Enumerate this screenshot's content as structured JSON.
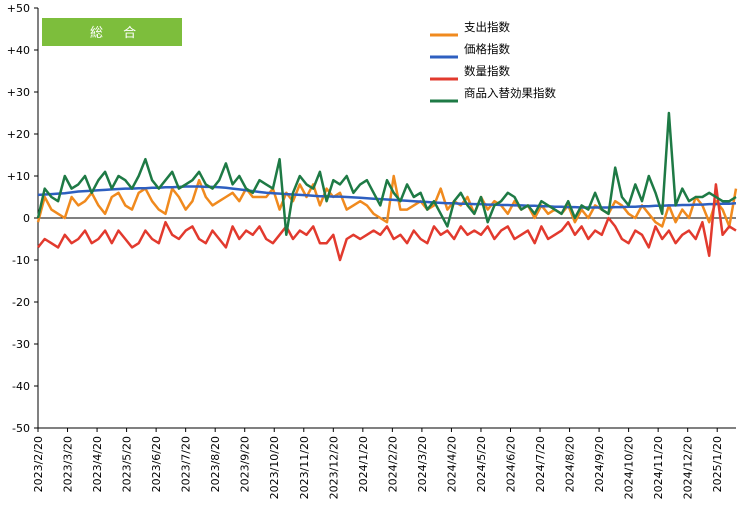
{
  "chart_data": {
    "type": "line",
    "badge": "総 合",
    "title": "",
    "xlabel": "",
    "ylabel": "",
    "ylim": [
      -50,
      50
    ],
    "yticks": [
      "-50",
      "-40",
      "-30",
      "-20",
      "-10",
      "0",
      "+10",
      "+20",
      "+30",
      "+40",
      "+50"
    ],
    "grid": false,
    "legend_position": "top-right",
    "x_tick_labels": [
      "2023/2/20",
      "2023/3/20",
      "2023/4/20",
      "2023/5/20",
      "2023/6/20",
      "2023/7/20",
      "2023/8/20",
      "2023/9/20",
      "2023/10/20",
      "2023/11/20",
      "2023/12/20",
      "2024/1/20",
      "2024/2/20",
      "2024/3/20",
      "2024/4/20",
      "2024/5/20",
      "2024/6/20",
      "2024/7/20",
      "2024/8/20",
      "2024/9/20",
      "2024/10/20",
      "2024/11/20",
      "2024/12/20",
      "2025/1/20"
    ],
    "x_count": 105,
    "tick_every": 4.4,
    "series": [
      {
        "name": "支出指数",
        "color": "#F08A1E",
        "values": [
          -1,
          5,
          2,
          1,
          0,
          5,
          3,
          4,
          6,
          3,
          1,
          5,
          6,
          3,
          2,
          6,
          7,
          4,
          2,
          1,
          7,
          5,
          2,
          4,
          9,
          5,
          3,
          4,
          5,
          6,
          4,
          7,
          5,
          5,
          5,
          7,
          2,
          6,
          4,
          8,
          5,
          8,
          3,
          7,
          5,
          6,
          2,
          3,
          4,
          3,
          1,
          0,
          -1,
          10,
          2,
          2,
          3,
          4,
          2,
          3,
          7,
          2,
          4,
          3,
          5,
          1,
          5,
          2,
          4,
          3,
          1,
          4,
          2,
          3,
          0,
          3,
          1,
          2,
          1,
          3,
          -1,
          2,
          0,
          3,
          2,
          1,
          4,
          3,
          1,
          0,
          3,
          1,
          -1,
          -2,
          3,
          -1,
          2,
          0,
          5,
          3,
          -1,
          4,
          2,
          -2,
          7
        ]
      },
      {
        "name": "価格指数",
        "color": "#2E5FC0",
        "values": [
          5.5,
          5.6,
          5.7,
          5.8,
          5.9,
          6.1,
          6.3,
          6.4,
          6.5,
          6.6,
          6.7,
          6.8,
          6.9,
          7.0,
          7.0,
          7.1,
          7.1,
          7.2,
          7.2,
          7.3,
          7.3,
          7.4,
          7.5,
          7.5,
          7.5,
          7.4,
          7.4,
          7.3,
          7.2,
          7.0,
          6.8,
          6.6,
          6.4,
          6.2,
          6.0,
          5.9,
          5.8,
          5.7,
          5.6,
          5.5,
          5.4,
          5.3,
          5.2,
          5.2,
          5.1,
          5.1,
          5.0,
          4.9,
          4.8,
          4.7,
          4.6,
          4.5,
          4.4,
          4.3,
          4.2,
          4.1,
          4.0,
          3.9,
          3.8,
          3.7,
          3.6,
          3.5,
          3.5,
          3.4,
          3.4,
          3.3,
          3.3,
          3.2,
          3.2,
          3.1,
          3.1,
          3.0,
          3.0,
          2.9,
          2.9,
          2.8,
          2.8,
          2.7,
          2.7,
          2.6,
          2.6,
          2.5,
          2.5,
          2.5,
          2.5,
          2.5,
          2.6,
          2.6,
          2.7,
          2.7,
          2.8,
          2.8,
          2.9,
          2.9,
          3.0,
          3.0,
          3.1,
          3.1,
          3.2,
          3.2,
          3.3,
          3.3,
          3.4,
          3.4,
          3.5
        ]
      },
      {
        "name": "数量指数",
        "color": "#E23A2E",
        "values": [
          -7,
          -5,
          -6,
          -7,
          -4,
          -6,
          -5,
          -3,
          -6,
          -5,
          -3,
          -6,
          -3,
          -5,
          -7,
          -6,
          -3,
          -5,
          -6,
          -1,
          -4,
          -5,
          -3,
          -2,
          -5,
          -6,
          -3,
          -5,
          -7,
          -2,
          -5,
          -3,
          -4,
          -2,
          -5,
          -6,
          -4,
          -2,
          -5,
          -3,
          -4,
          -2,
          -6,
          -6,
          -4,
          -10,
          -5,
          -4,
          -5,
          -4,
          -3,
          -4,
          -2,
          -5,
          -4,
          -6,
          -3,
          -5,
          -6,
          -2,
          -4,
          -3,
          -5,
          -2,
          -4,
          -3,
          -4,
          -2,
          -5,
          -3,
          -2,
          -5,
          -4,
          -3,
          -6,
          -2,
          -5,
          -4,
          -3,
          -1,
          -4,
          -2,
          -5,
          -3,
          -4,
          0,
          -2,
          -5,
          -6,
          -3,
          -4,
          -7,
          -2,
          -5,
          -3,
          -6,
          -4,
          -3,
          -5,
          -1,
          -9,
          8,
          -4,
          -2,
          -3
        ]
      },
      {
        "name": "商品入替効果指数",
        "color": "#1E7A45",
        "values": [
          0,
          7,
          5,
          4,
          10,
          7,
          8,
          10,
          6,
          9,
          11,
          7,
          10,
          9,
          7,
          10,
          14,
          9,
          7,
          9,
          11,
          7,
          8,
          9,
          11,
          8,
          7,
          9,
          13,
          8,
          10,
          7,
          6,
          9,
          8,
          7,
          14,
          -4,
          6,
          10,
          8,
          7,
          11,
          4,
          9,
          8,
          10,
          6,
          8,
          9,
          6,
          3,
          9,
          6,
          4,
          8,
          5,
          6,
          2,
          4,
          1,
          -2,
          4,
          6,
          3,
          1,
          5,
          -1,
          3,
          4,
          6,
          5,
          2,
          3,
          1,
          4,
          3,
          2,
          1,
          4,
          0,
          3,
          2,
          6,
          2,
          1,
          12,
          5,
          3,
          8,
          4,
          10,
          6,
          1,
          25,
          3,
          7,
          4,
          5,
          5,
          6,
          5,
          4,
          4,
          5
        ]
      }
    ]
  },
  "colors": {
    "badge_bg": "#7DBE3C",
    "axis": "#000000"
  }
}
